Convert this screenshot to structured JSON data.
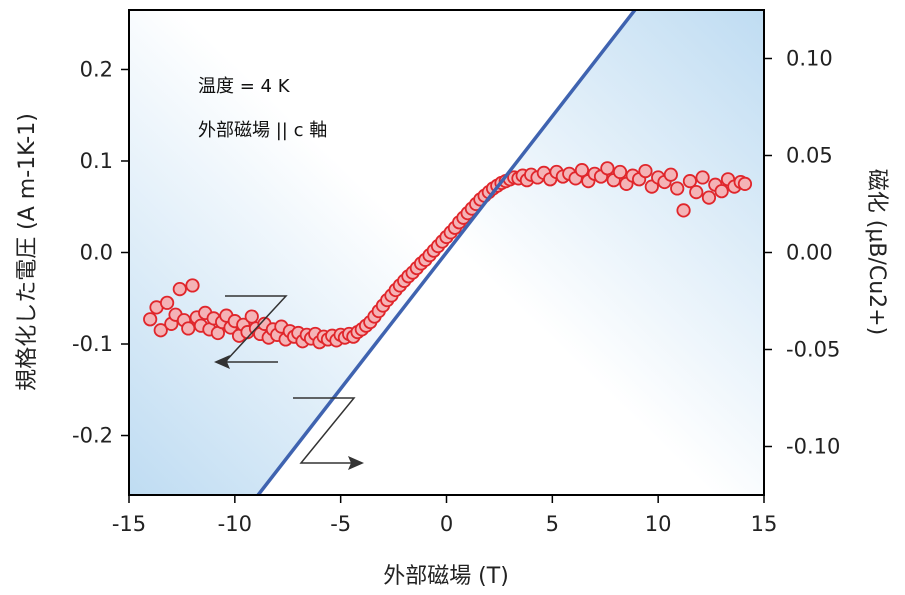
{
  "chart_data": {
    "type": "scatter",
    "xlabel": "外部磁場 (T)",
    "ylabel_left": "規格化した電圧 (A m-1K-1)",
    "ylabel_right": "磁化 (μB/Cu2+)",
    "xlim": [
      -15,
      15
    ],
    "ylim_left": [
      -0.265,
      0.265
    ],
    "ylim_right": [
      -0.125,
      0.125
    ],
    "x_ticks": [
      "-15",
      "-10",
      "-5",
      "0",
      "5",
      "10",
      "15"
    ],
    "y_ticks_left": [
      "0.2",
      "0.1",
      "0.0",
      "-0.1",
      "-0.2"
    ],
    "y_ticks_right": [
      "0.10",
      "0.05",
      "0.00",
      "-0.05",
      "-0.10"
    ],
    "annotations": [
      "温度 = 4 K",
      "外部磁場 || c 軸"
    ],
    "colors": {
      "markers_fill": "#f4b3b6",
      "markers_stroke": "#e0262b",
      "line": "#3f63b0",
      "shade": "#cfe6f5",
      "axes": "#000000"
    },
    "series": [
      {
        "type": "scatter",
        "axis": "left",
        "x": [
          -14.0,
          -13.7,
          -13.5,
          -13.2,
          -13.0,
          -12.8,
          -12.6,
          -12.4,
          -12.2,
          -12.0,
          -11.8,
          -11.6,
          -11.4,
          -11.2,
          -11.0,
          -10.8,
          -10.6,
          -10.4,
          -10.2,
          -10.0,
          -9.8,
          -9.6,
          -9.4,
          -9.2,
          -9.0,
          -8.8,
          -8.6,
          -8.4,
          -8.2,
          -8.0,
          -7.8,
          -7.6,
          -7.4,
          -7.2,
          -7.0,
          -6.8,
          -6.6,
          -6.4,
          -6.2,
          -6.0,
          -5.8,
          -5.6,
          -5.4,
          -5.2,
          -5.0,
          -4.8,
          -4.6,
          -4.4,
          -4.2,
          -4.0,
          -3.8,
          -3.6,
          -3.4,
          -3.2,
          -3.0,
          -2.8,
          -2.6,
          -2.4,
          -2.2,
          -2.0,
          -1.8,
          -1.6,
          -1.4,
          -1.2,
          -1.0,
          -0.8,
          -0.6,
          -0.4,
          -0.2,
          0.0,
          0.2,
          0.4,
          0.6,
          0.8,
          1.0,
          1.2,
          1.4,
          1.6,
          1.8,
          2.0,
          2.2,
          2.4,
          2.6,
          2.8,
          3.0,
          3.2,
          3.4,
          3.6,
          3.8,
          4.0,
          4.3,
          4.6,
          4.9,
          5.2,
          5.5,
          5.8,
          6.1,
          6.4,
          6.7,
          7.0,
          7.3,
          7.6,
          7.9,
          8.2,
          8.5,
          8.8,
          9.1,
          9.4,
          9.7,
          10.0,
          10.3,
          10.6,
          10.9,
          11.2,
          11.5,
          11.8,
          12.1,
          12.4,
          12.7,
          13.0,
          13.3,
          13.6,
          13.9,
          14.1
        ],
        "y": [
          -0.073,
          -0.06,
          -0.085,
          -0.055,
          -0.078,
          -0.068,
          -0.04,
          -0.074,
          -0.083,
          -0.036,
          -0.071,
          -0.08,
          -0.066,
          -0.084,
          -0.072,
          -0.088,
          -0.076,
          -0.069,
          -0.082,
          -0.075,
          -0.091,
          -0.079,
          -0.087,
          -0.07,
          -0.083,
          -0.089,
          -0.078,
          -0.093,
          -0.084,
          -0.09,
          -0.081,
          -0.095,
          -0.086,
          -0.092,
          -0.088,
          -0.097,
          -0.09,
          -0.094,
          -0.089,
          -0.098,
          -0.092,
          -0.095,
          -0.091,
          -0.096,
          -0.09,
          -0.093,
          -0.089,
          -0.092,
          -0.087,
          -0.084,
          -0.08,
          -0.076,
          -0.07,
          -0.064,
          -0.058,
          -0.052,
          -0.047,
          -0.041,
          -0.036,
          -0.031,
          -0.026,
          -0.022,
          -0.017,
          -0.012,
          -0.008,
          -0.003,
          0.002,
          0.007,
          0.012,
          0.017,
          0.022,
          0.027,
          0.033,
          0.038,
          0.043,
          0.048,
          0.053,
          0.058,
          0.062,
          0.066,
          0.07,
          0.073,
          0.076,
          0.078,
          0.08,
          0.082,
          0.081,
          0.084,
          0.079,
          0.085,
          0.082,
          0.087,
          0.08,
          0.088,
          0.083,
          0.086,
          0.081,
          0.09,
          0.078,
          0.086,
          0.083,
          0.092,
          0.079,
          0.088,
          0.075,
          0.084,
          0.08,
          0.089,
          0.072,
          0.082,
          0.077,
          0.085,
          0.07,
          0.046,
          0.078,
          0.066,
          0.082,
          0.06,
          0.074,
          0.067,
          0.08,
          0.072,
          0.077,
          0.075
        ]
      },
      {
        "type": "line",
        "axis": "right",
        "x": [
          -8.9,
          8.9
        ],
        "y": [
          -0.125,
          0.125
        ]
      }
    ]
  }
}
